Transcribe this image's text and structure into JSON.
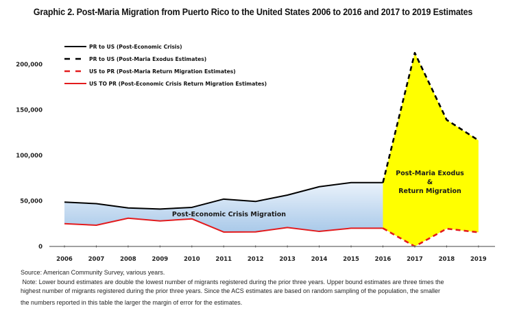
{
  "chart_data": {
    "type": "line",
    "title": "Graphic 2. Post-Maria Migration from Puerto Rico to the United States 2006 to 2016 and 2017 to 2019 Estimates",
    "xlabel": "",
    "ylabel": "",
    "x": [
      "2006",
      "2007",
      "2008",
      "2009",
      "2010",
      "2011",
      "2012",
      "2013",
      "2014",
      "2015",
      "2016",
      "2017",
      "2018",
      "2019"
    ],
    "ylim": [
      0,
      200000
    ],
    "yticks": [
      0,
      50000,
      100000,
      150000,
      200000
    ],
    "ytick_labels": [
      "0",
      "50,000",
      "100,000",
      "150,000",
      "200,000"
    ],
    "grid": false,
    "legend_position": "top-left",
    "series": [
      {
        "name": "PR to US (Post-Economic Crisis)",
        "color": "#000000",
        "style": "solid",
        "x": [
          "2006",
          "2007",
          "2008",
          "2009",
          "2010",
          "2011",
          "2012",
          "2013",
          "2014",
          "2015",
          "2016"
        ],
        "values": [
          48700,
          47000,
          42300,
          41100,
          42900,
          52000,
          49400,
          56400,
          65600,
          70100,
          70100
        ]
      },
      {
        "name": "PR to US (Post-Maria Exodus Estimates)",
        "color": "#000000",
        "style": "dashed",
        "x": [
          "2016",
          "2017",
          "2018",
          "2019"
        ],
        "values": [
          70100,
          212600,
          139100,
          116500
        ]
      },
      {
        "name": "US to PR (Post-Maria Return Migration Estimates)",
        "color": "#e31a1c",
        "style": "dashed",
        "x": [
          "2016",
          "2017",
          "2018",
          "2019"
        ],
        "values": [
          20000,
          0,
          19500,
          15500
        ]
      },
      {
        "name": "US TO PR (Post-Economic Crisis Return Migration Estimates)",
        "color": "#e31a1c",
        "style": "solid",
        "x": [
          "2006",
          "2007",
          "2008",
          "2009",
          "2010",
          "2011",
          "2012",
          "2013",
          "2014",
          "2015",
          "2016"
        ],
        "values": [
          25000,
          23300,
          31000,
          28000,
          30300,
          15800,
          16000,
          20800,
          16500,
          20000,
          20000
        ]
      }
    ],
    "annotations": [
      {
        "text": "Post-Economic Crisis Migration",
        "region": "2006-2016 band",
        "fill": "#bcd6ee"
      },
      {
        "lines": [
          "Post-Maria Exodus",
          "&",
          "Return Migration"
        ],
        "region": "2016-2019 band",
        "fill": "#ffff00"
      }
    ]
  },
  "footer": {
    "source": "Source: American Community Survey, various years.",
    "note_line1": " Note: Lower bound estimates are double the lowest number of migrants registered during the prior three years. Upper bound estimates are three times the",
    "note_line2": "highest number of migrants registered during the prior three years. Since the ACS estimates are based on random sampling of the population, the smaller",
    "note_line3": "the numbers reported in this table the larger the margin of error for the estimates."
  }
}
